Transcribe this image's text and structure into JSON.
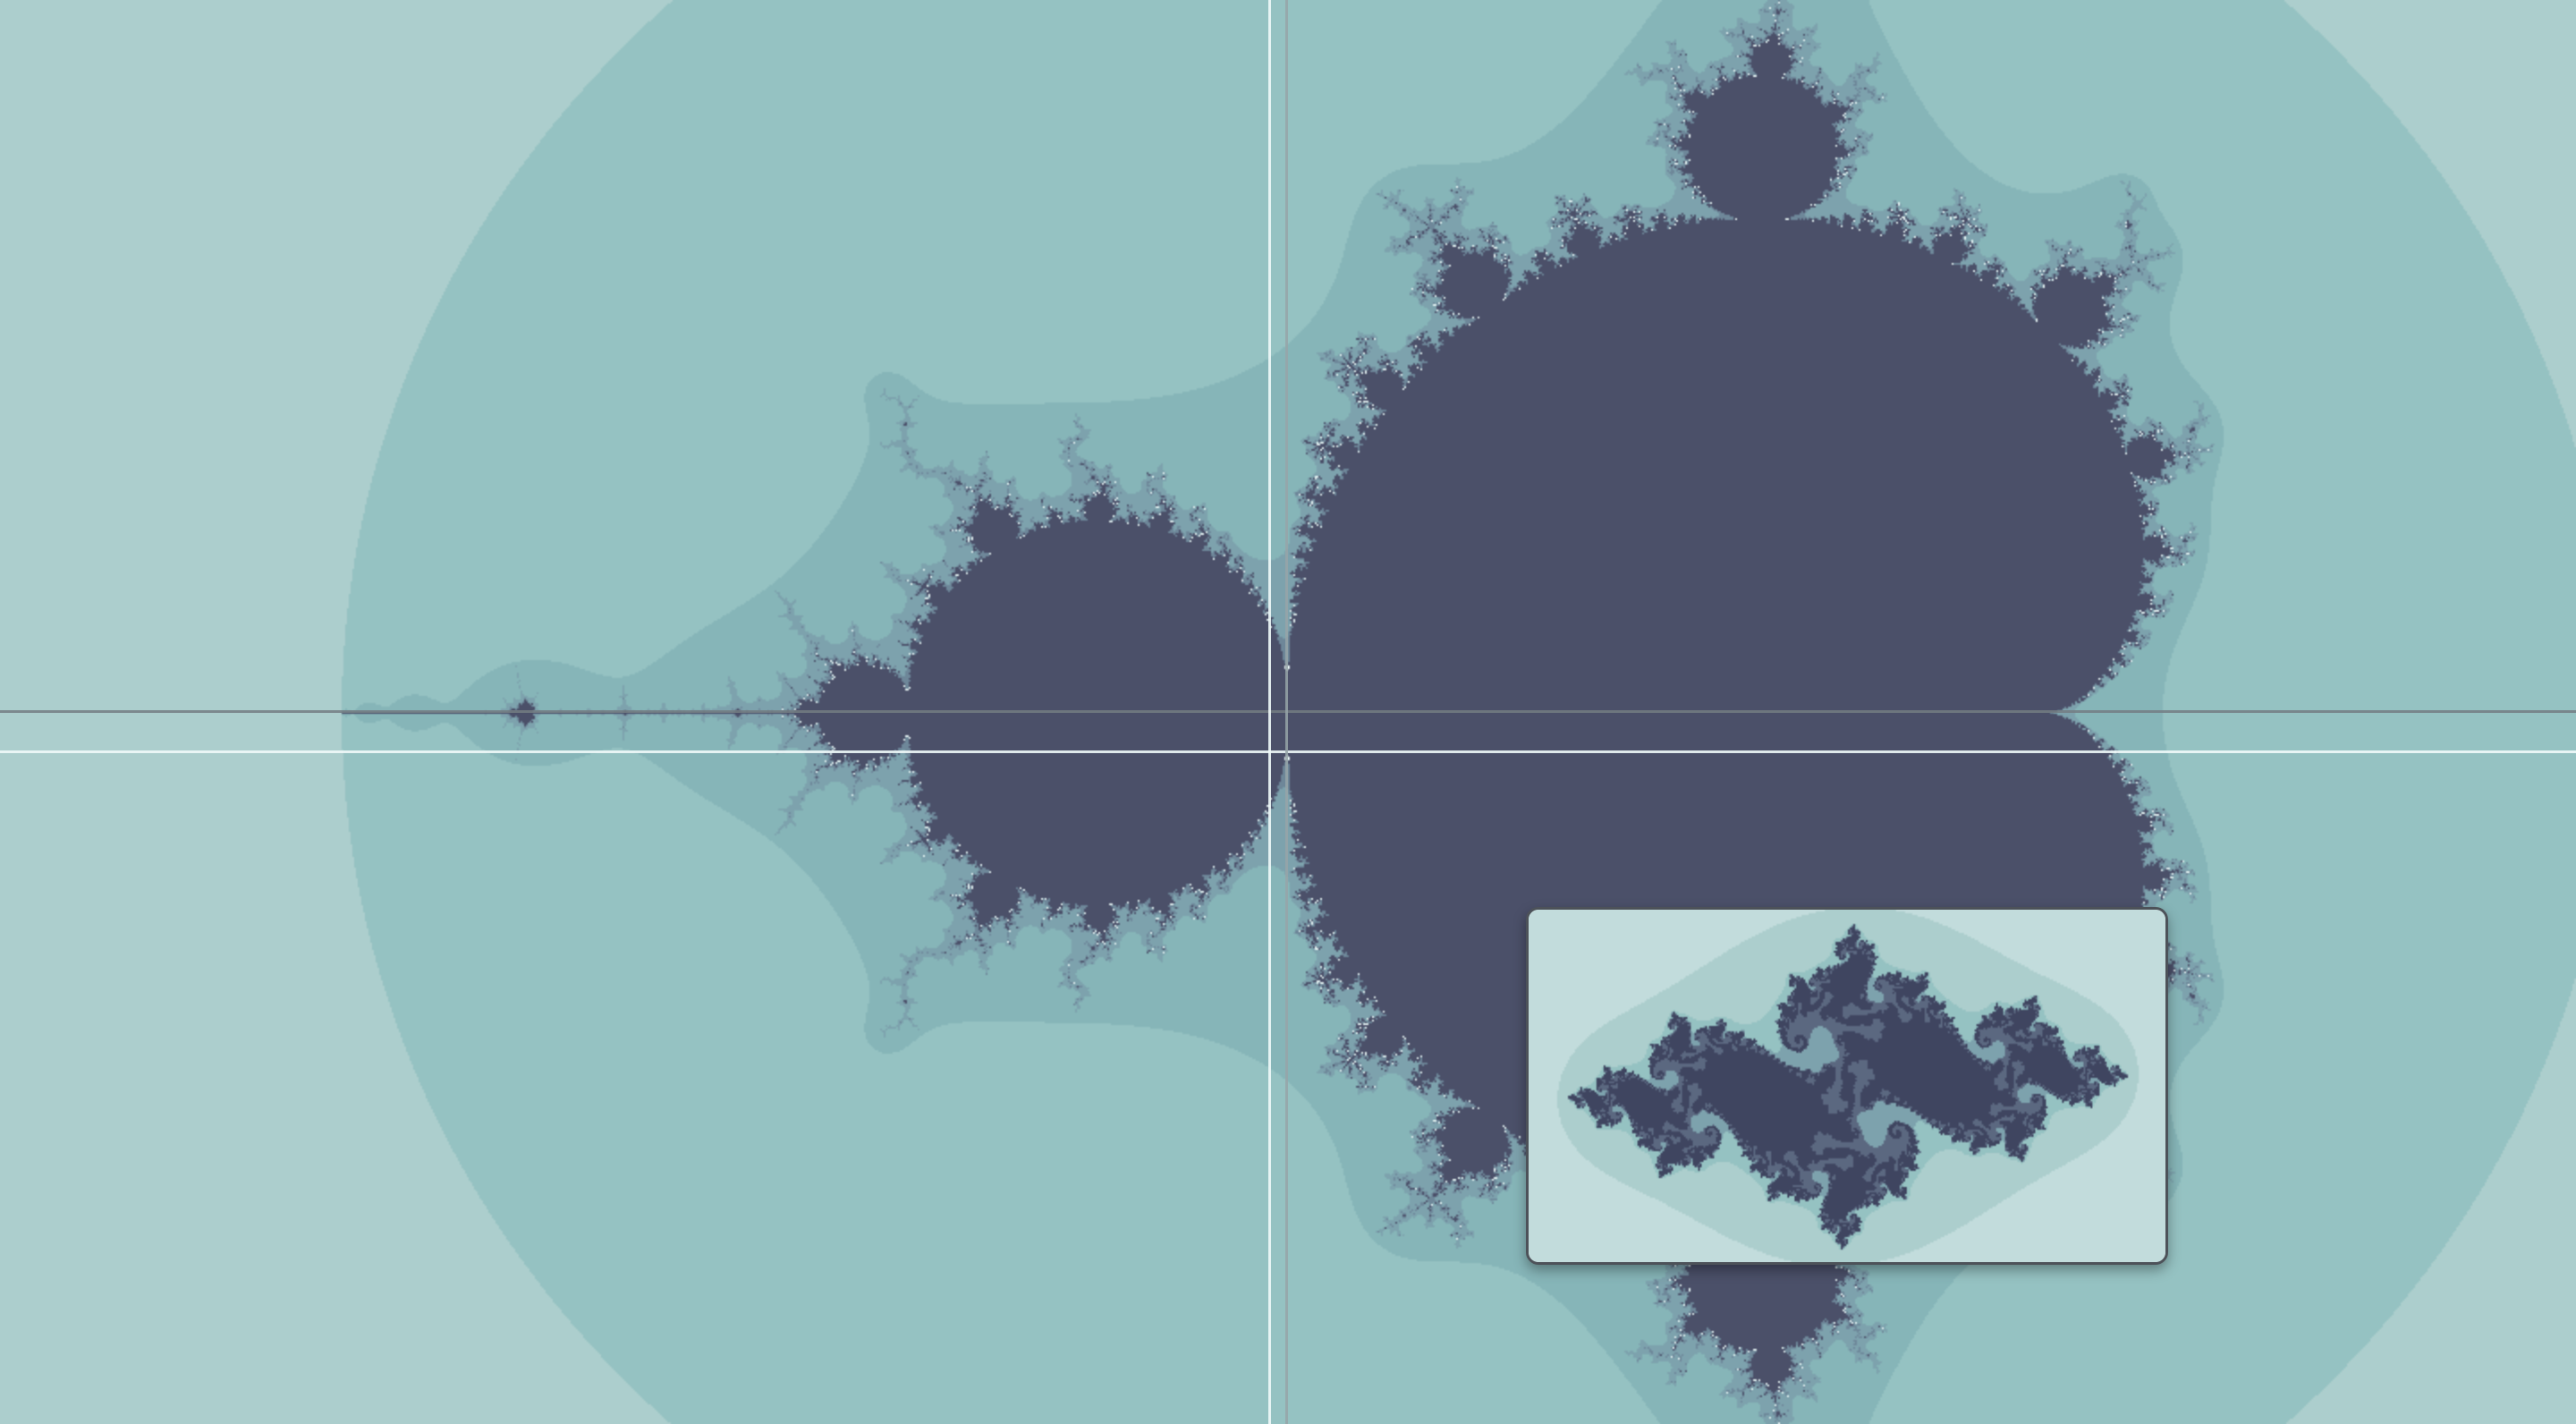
{
  "window": {
    "title": ""
  },
  "fractal": {
    "type": "mandelbrot",
    "center": [
      -0.75,
      0.0
    ],
    "span_x": 3.4,
    "max_iterations": 60,
    "palette": {
      "interior": "#4b5069",
      "bands_outer_to_inner": [
        "#c3dcdc",
        "#accecd",
        "#95c2c2",
        "#86b5b8",
        "#7da2ad",
        "#6e8799",
        "#5b6880",
        "#4b5069"
      ],
      "edge_highlight": "#e6f4f4"
    }
  },
  "julia_preview": {
    "type": "julia",
    "c": [
      -0.745,
      0.113
    ],
    "palette": {
      "interior": "#3f4560",
      "bands_outer_to_inner": [
        "#d4e7e7",
        "#c2dcdc",
        "#accecd",
        "#95c2c2",
        "#7da2ad",
        "#5b6880",
        "#3f4560"
      ]
    }
  },
  "crosshair": {
    "horizontal_color": "#737d82",
    "vertical_color": "#f0fafa"
  }
}
